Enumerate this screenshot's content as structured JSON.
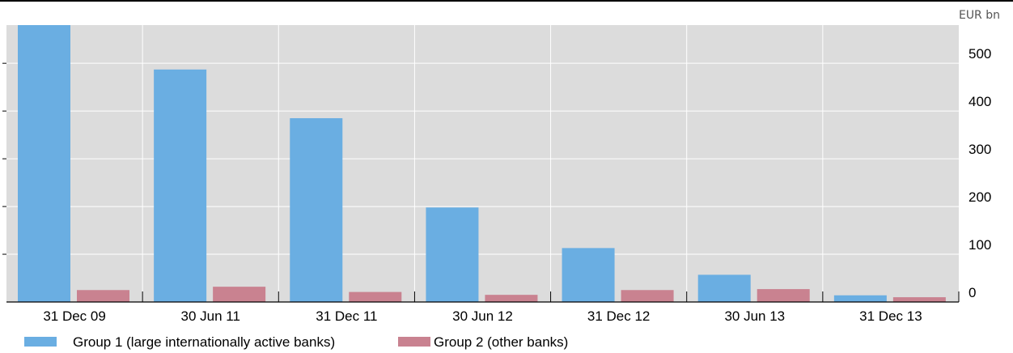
{
  "chart_data": {
    "type": "bar",
    "unit": "EUR bn",
    "categories": [
      "31 Dec 09",
      "30 Jun 11",
      "31 Dec 11",
      "30 Jun 12",
      "31 Dec 12",
      "30 Jun 13",
      "31 Dec 13"
    ],
    "series": [
      {
        "name": "Group 1 (large internationally active banks)",
        "color": "#6aaee2",
        "values": [
          580,
          487,
          385,
          198,
          113,
          57,
          14
        ]
      },
      {
        "name": "Group 2 (other banks)",
        "color": "#c98290",
        "values": [
          25,
          32,
          21,
          15,
          25,
          27,
          10
        ]
      }
    ],
    "yticks": [
      0,
      100,
      200,
      300,
      400,
      500
    ],
    "ylim": [
      0,
      580
    ],
    "grid": true,
    "y_axis_side": "right",
    "legend_position": "bottom-left",
    "background_color": "#dcdcdc"
  }
}
